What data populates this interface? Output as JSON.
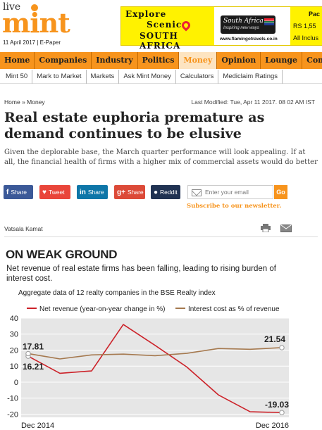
{
  "site": {
    "logo_top": "live",
    "logo_main": "mint",
    "date": "11 April 2017",
    "epaper": "E-Paper"
  },
  "ad": {
    "line1": "Explore",
    "line2": "Scenic",
    "line3": "SOUTH AFRICA",
    "brand": "South Africa",
    "tagline": "Inspiring new ways",
    "url": "www.flamingotravels.co.in",
    "r1": "Pac",
    "r2": "RS 1,55",
    "r3": "All Inclus"
  },
  "nav": {
    "items": [
      "Home",
      "Companies",
      "Industry",
      "Politics",
      "Money",
      "Opinion",
      "Lounge",
      "Con"
    ],
    "active": "Money",
    "sub": [
      "Mint 50",
      "Mark to Market",
      "Markets",
      "Ask Mint Money",
      "Calculators",
      "Mediclaim Ratings"
    ]
  },
  "article": {
    "crumb_home": "Home",
    "crumb_sep": "»",
    "crumb_section": "Money",
    "modified": "Last Modified: Tue, Apr 11 2017. 08 02 AM IST",
    "headline": "Real estate euphoria premature as demand continues to be elusive",
    "summary": "Given the deplorable base, the March quarter performance will look appealing. If at all, the financial health of firms with a higher mix of commercial assets would do better",
    "author": "Vatsala Kamat"
  },
  "share": {
    "facebook": "Share",
    "twitter": "Tweet",
    "linkedin": "Share",
    "google": "Share",
    "reddit": "Reddit",
    "email_placeholder": "Enter your email",
    "go": "Go",
    "subscribe": "Subscribe to our newsletter."
  },
  "icons": {
    "print": "printer-icon",
    "email": "envelope-icon"
  },
  "colors": {
    "brand": "#f7941d",
    "facebook": "#3b5998",
    "twitter": "#e9453a",
    "linkedin": "#0e76a8",
    "google": "#dc4a38",
    "reddit": "#203252",
    "net_revenue": "#cc2229",
    "interest": "#a5794f"
  },
  "chart_data": {
    "type": "line",
    "title": "ON WEAK GROUND",
    "subtitle": "Net revenue of real estate firms has been falling, leading to rising burden of interest cost.",
    "note": "Aggregate data of 12 realty companies in the BSE Realty index",
    "x_labels": [
      "Dec 2014",
      "Dec 2016"
    ],
    "y_ticks": [
      "40",
      "30",
      "20",
      "10",
      "0",
      "-10",
      "-20"
    ],
    "ylim": [
      -22,
      40
    ],
    "legend": "top",
    "grid": true,
    "series": [
      {
        "name": "Net revenue (year-on-year change in %)",
        "color": "#cc2229",
        "values": [
          16.21,
          5.5,
          7,
          36,
          23,
          9.5,
          -8,
          -18.5,
          -19.03
        ]
      },
      {
        "name": "Interest cost as % of revenue",
        "color": "#a5794f",
        "values": [
          17.81,
          14.5,
          17,
          17.5,
          16.5,
          18,
          21,
          20.5,
          21.54
        ]
      }
    ],
    "annotations": [
      "17.81",
      "16.21",
      "21.54",
      "-19.03"
    ]
  }
}
